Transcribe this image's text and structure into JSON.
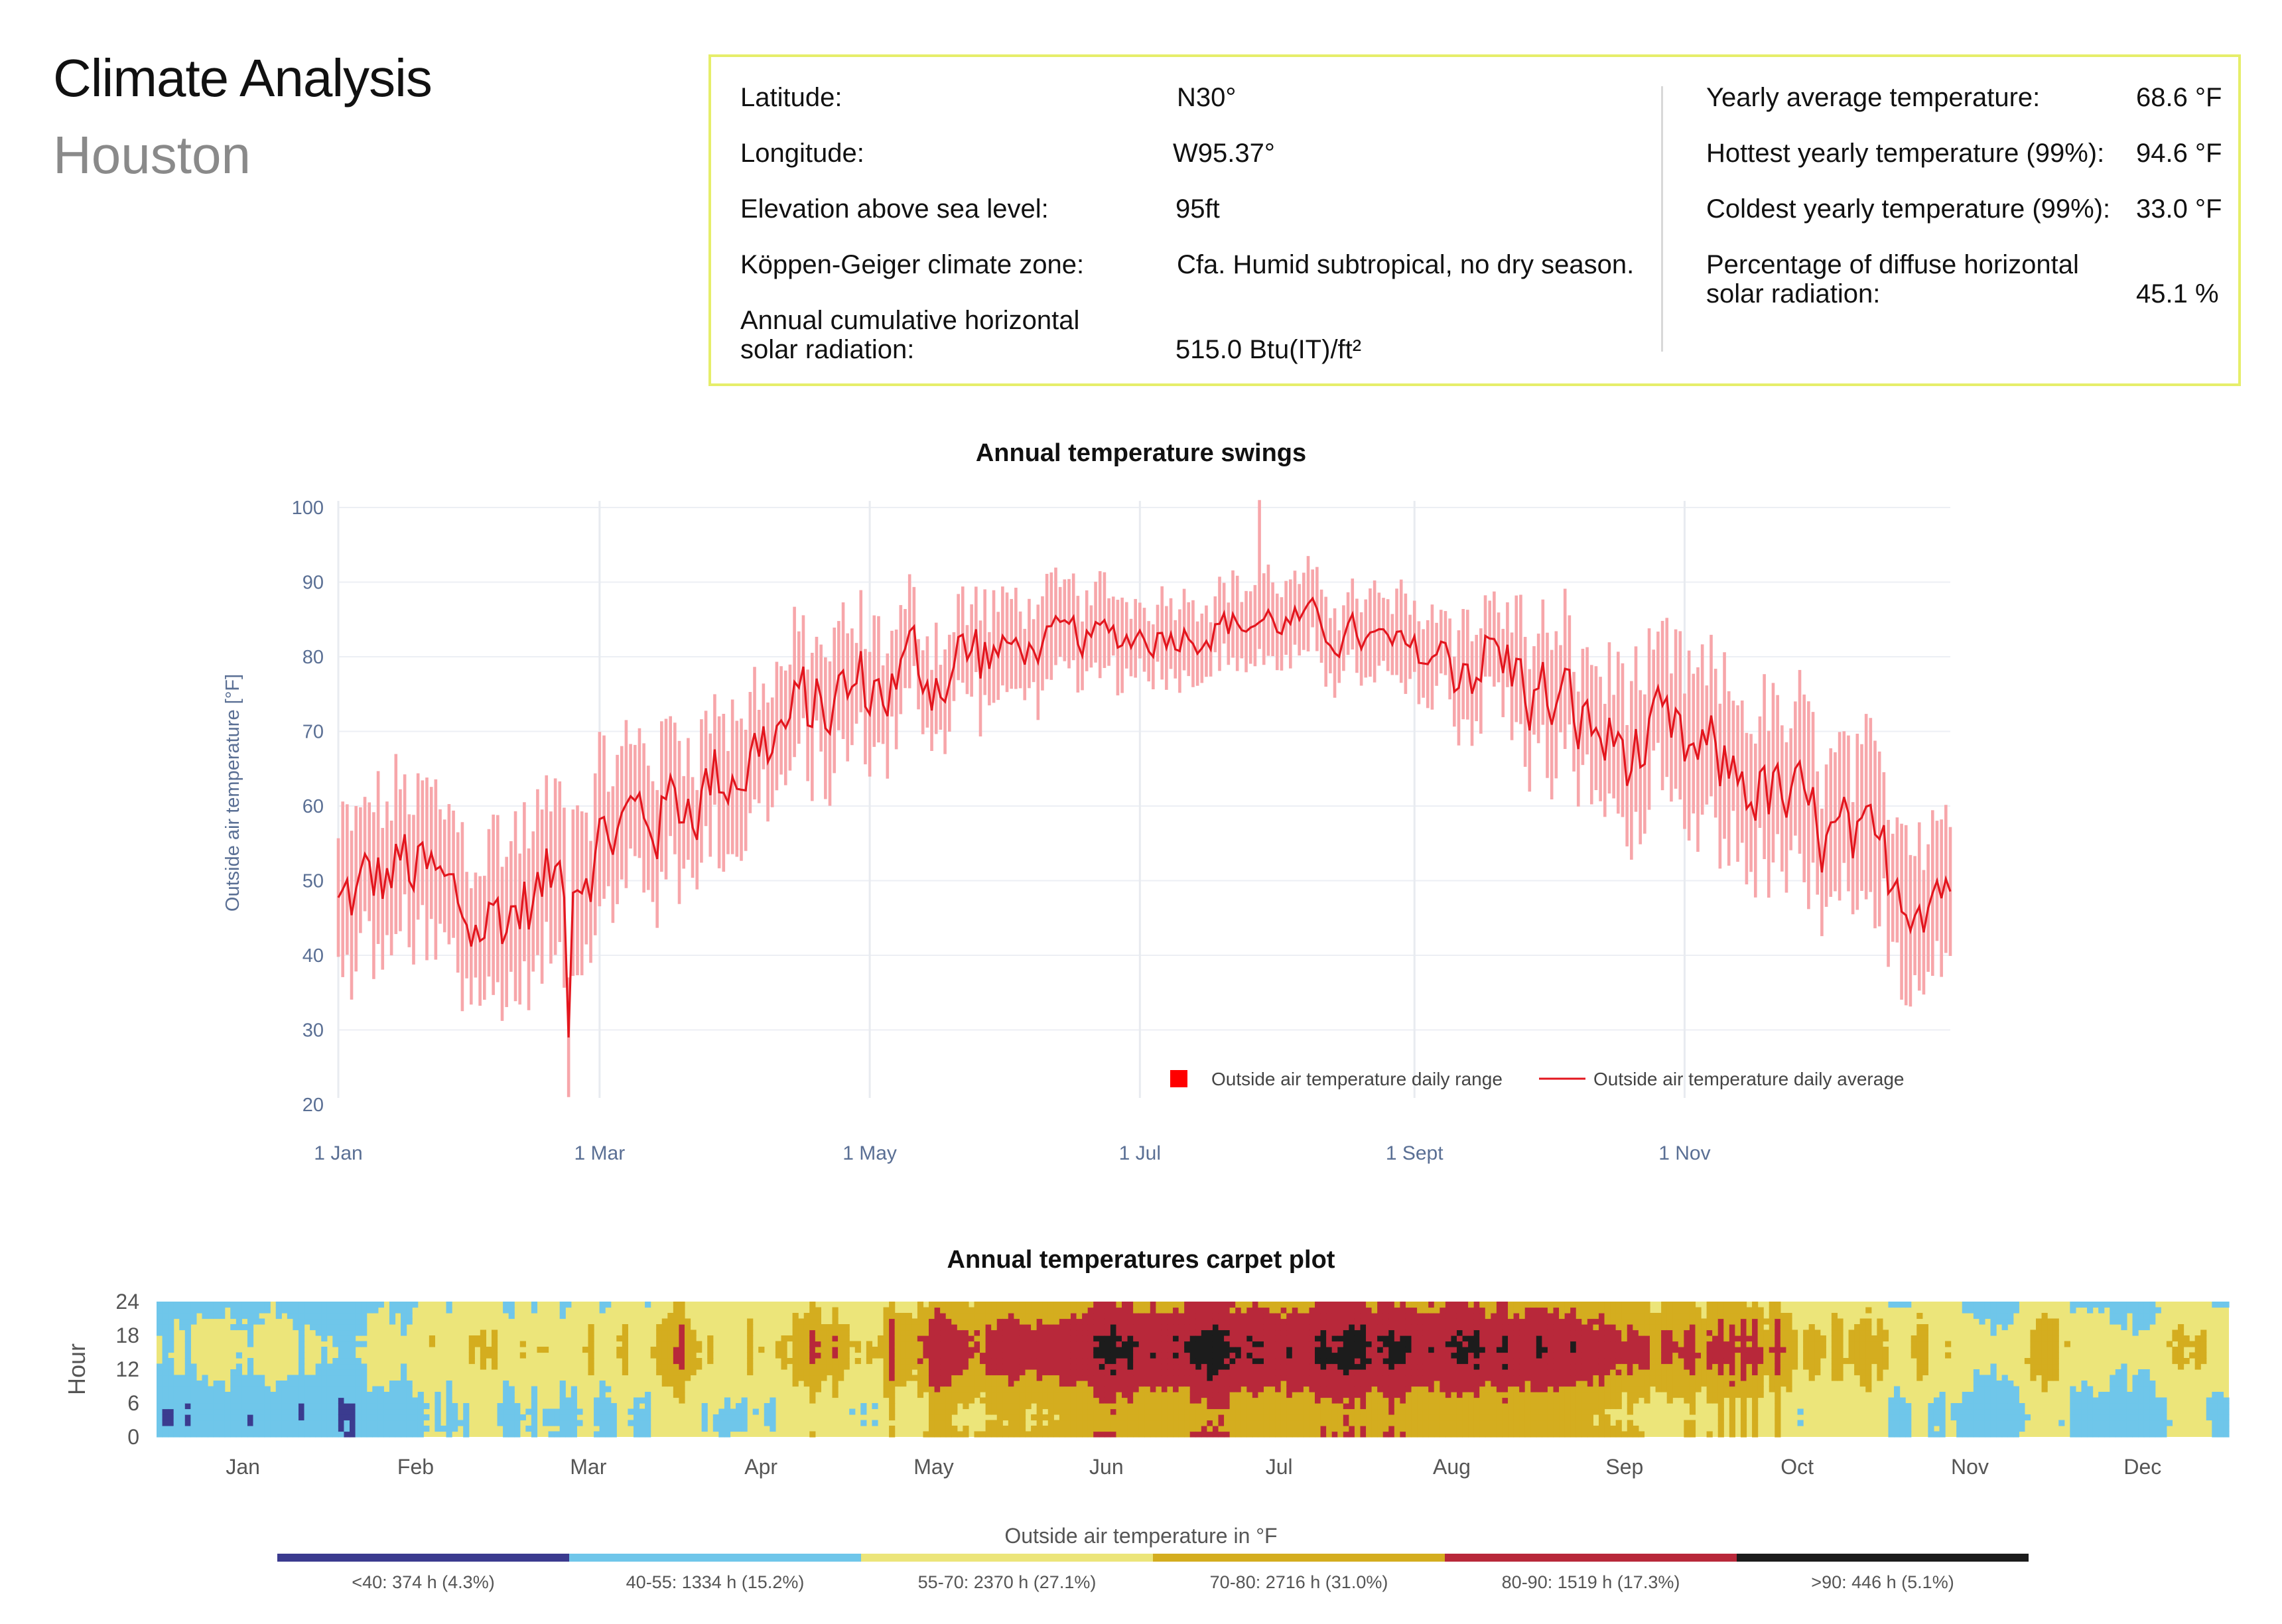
{
  "header": {
    "title": "Climate Analysis",
    "location": "Houston"
  },
  "info": {
    "left": [
      {
        "label": "Latitude:",
        "value": "N30°"
      },
      {
        "label": "Longitude:",
        "value": "W95.37°"
      },
      {
        "label": "Elevation above sea level:",
        "value": "95ft"
      },
      {
        "label": "Köppen-Geiger climate zone:",
        "value": "Cfa. Humid subtropical, no dry season."
      },
      {
        "label_line1": "Annual cumulative horizontal",
        "label_line2": "solar radiation:",
        "value": "515.0 Btu(IT)/ft²"
      }
    ],
    "right": [
      {
        "label": "Yearly average temperature:",
        "value": "68.6 °F"
      },
      {
        "label": "Hottest yearly temperature (99%):",
        "value": "94.6 °F"
      },
      {
        "label": "Coldest yearly temperature (99%):",
        "value": "33.0 °F"
      },
      {
        "label_line1": "Percentage of diffuse horizontal",
        "label_line2": "solar radiation:",
        "value": "45.1 %"
      }
    ]
  },
  "chart_data": [
    {
      "type": "line",
      "title": "Annual temperature swings",
      "ylabel": "Outside air temperature [°F]",
      "xlabel": "",
      "ylim": [
        20,
        100
      ],
      "yticks": [
        20,
        30,
        40,
        50,
        60,
        70,
        80,
        90,
        100
      ],
      "xtick_labels": [
        "1 Jan",
        "1 Mar",
        "1 May",
        "1 Jul",
        "1 Sept",
        "1 Nov"
      ],
      "xtick_days": [
        0,
        59,
        120,
        181,
        243,
        304
      ],
      "legend": {
        "range": "Outside air temperature daily range",
        "average": "Outside air temperature daily average",
        "placement": "bottom-right"
      },
      "colors": {
        "range": "#f7a6aa",
        "average": "#e3161e",
        "legend_range": "#ff0000"
      },
      "monthly_average_curve": {
        "day": [
          0,
          15,
          31,
          45,
          59,
          75,
          90,
          105,
          120,
          135,
          151,
          165,
          181,
          196,
          212,
          227,
          243,
          258,
          273,
          288,
          304,
          318,
          334,
          350,
          364
        ],
        "avg": [
          46,
          52,
          44,
          48,
          56,
          60,
          66,
          72,
          76,
          79,
          81,
          82,
          83,
          84,
          85,
          83,
          80,
          81,
          74,
          68,
          66,
          64,
          56,
          50,
          51
        ],
        "daily_range_half_width": [
          9,
          10,
          10,
          10,
          9,
          9,
          8,
          8,
          7,
          6,
          6,
          6,
          5,
          5,
          5,
          5,
          6,
          6,
          8,
          9,
          10,
          10,
          11,
          10,
          10
        ]
      },
      "notable_points": {
        "min_avg": 29,
        "min_low": 21,
        "max_high": 101
      }
    },
    {
      "type": "heatmap",
      "title": "Annual temperatures carpet plot",
      "ylabel": "Hour",
      "yticks": [
        0,
        6,
        12,
        18,
        24
      ],
      "months": [
        "Jan",
        "Feb",
        "Mar",
        "Apr",
        "May",
        "Jun",
        "Jul",
        "Aug",
        "Sep",
        "Oct",
        "Nov",
        "Dec"
      ],
      "colorbar_title": "Outside air temperature in °F",
      "bins": [
        {
          "label": "<40: 374 h (4.3%)",
          "color": "#3b3b8f"
        },
        {
          "label": "40-55: 1334 h (15.2%)",
          "color": "#6fc6ea"
        },
        {
          "label": "55-70: 2370 h (27.1%)",
          "color": "#ece57a"
        },
        {
          "label": "70-80: 2716 h (31.0%)",
          "color": "#d4ad1f"
        },
        {
          "label": "80-90: 1519 h (17.3%)",
          "color": "#b8283a"
        },
        {
          "label": ">90: 446 h (5.1%)",
          "color": "#1c1c1c"
        }
      ]
    }
  ]
}
